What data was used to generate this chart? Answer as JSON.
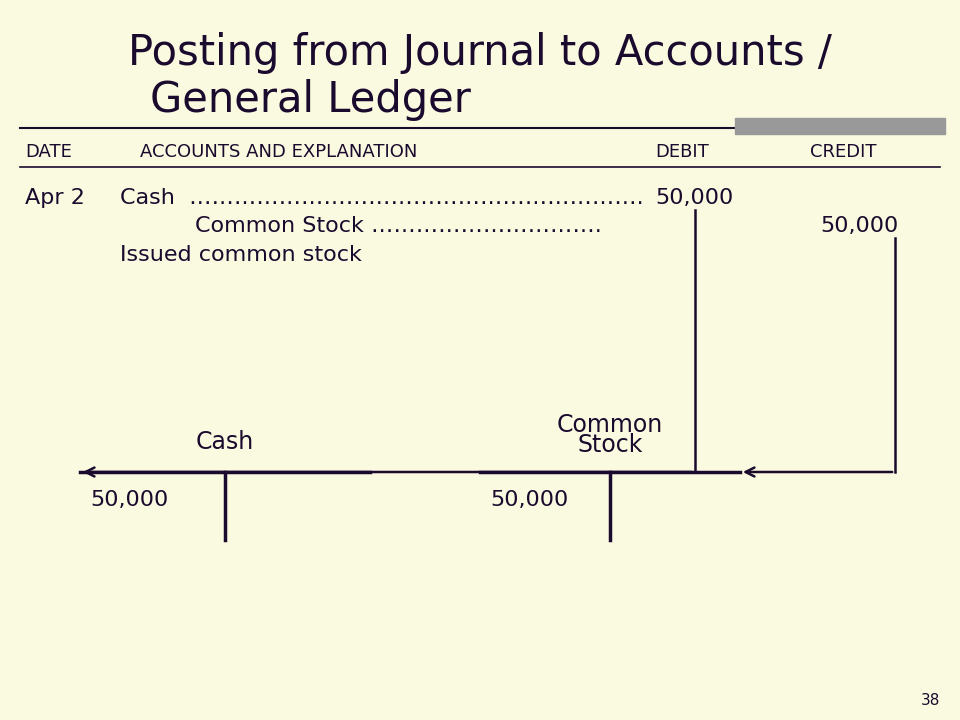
{
  "title_line1": "Posting from Journal to Accounts /",
  "title_line2": "General Ledger",
  "bg_color": "#FAFAE0",
  "title_color": "#1a0a2e",
  "text_color": "#1a0a2e",
  "page_number": "38",
  "journal_date": "Apr 2",
  "journal_cash_line": "Cash  …………………………………………………….",
  "journal_debit_amount": "50,000",
  "journal_cs_line": "Common Stock ………………………….",
  "journal_credit_amount": "50,000",
  "journal_note": "Issued common stock",
  "cash_ledger_label": "Cash",
  "cash_ledger_amount": "50,000",
  "cs_ledger_label_line1": "Common",
  "cs_ledger_label_line2": "Stock",
  "cs_ledger_amount": "50,000",
  "gray_bar_color": "#999999",
  "line_color": "#1a0a2e",
  "header_date": "DATE",
  "header_acct": "ACCOUNTS AND EXPLANATION",
  "header_debit": "DEBIT",
  "header_credit": "CREDIT"
}
